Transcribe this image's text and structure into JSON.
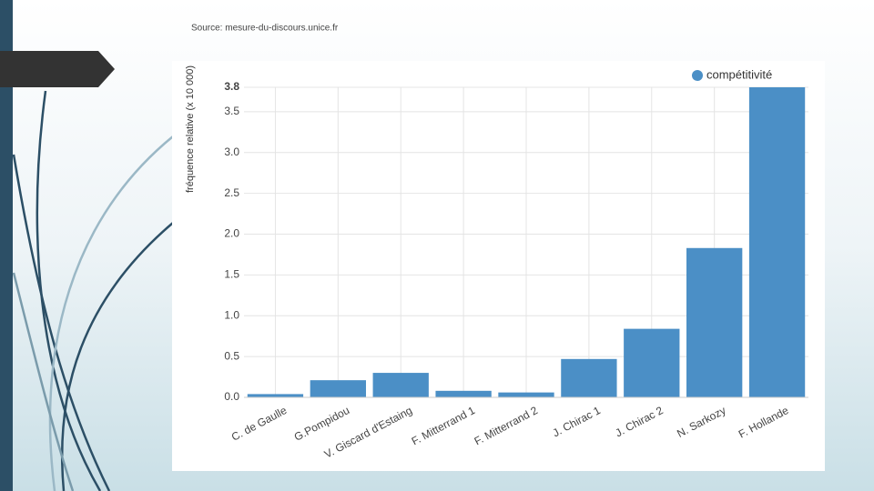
{
  "chart_data": {
    "type": "bar",
    "source": "Source: mesure-du-discours.unice.fr",
    "y_label": "fréquence relative (x 10 000)",
    "categories": [
      "C. de Gaulle",
      "G.Pompidou",
      "V. Giscard d'Estaing",
      "F. Mitterrand 1",
      "F. Mitterrand 2",
      "J. Chirac 1",
      "J. Chirac 2",
      "N. Sarkozy",
      "F. Hollande"
    ],
    "series": [
      {
        "name": "compétitivité",
        "color": "#4b8fc6",
        "values": [
          0.04,
          0.21,
          0.3,
          0.08,
          0.06,
          0.47,
          0.84,
          1.83,
          3.8
        ]
      }
    ],
    "ylim": [
      0,
      3.8
    ],
    "yticks": [
      {
        "value": 0,
        "label": "0.0"
      },
      0.5,
      {
        "value": 1,
        "label": "1.0"
      },
      1.5,
      {
        "value": 2,
        "label": "2.0"
      },
      2.5,
      {
        "value": 3,
        "label": "3.0"
      },
      3.5,
      3.8
    ],
    "grid": true,
    "legend": "top-right"
  }
}
